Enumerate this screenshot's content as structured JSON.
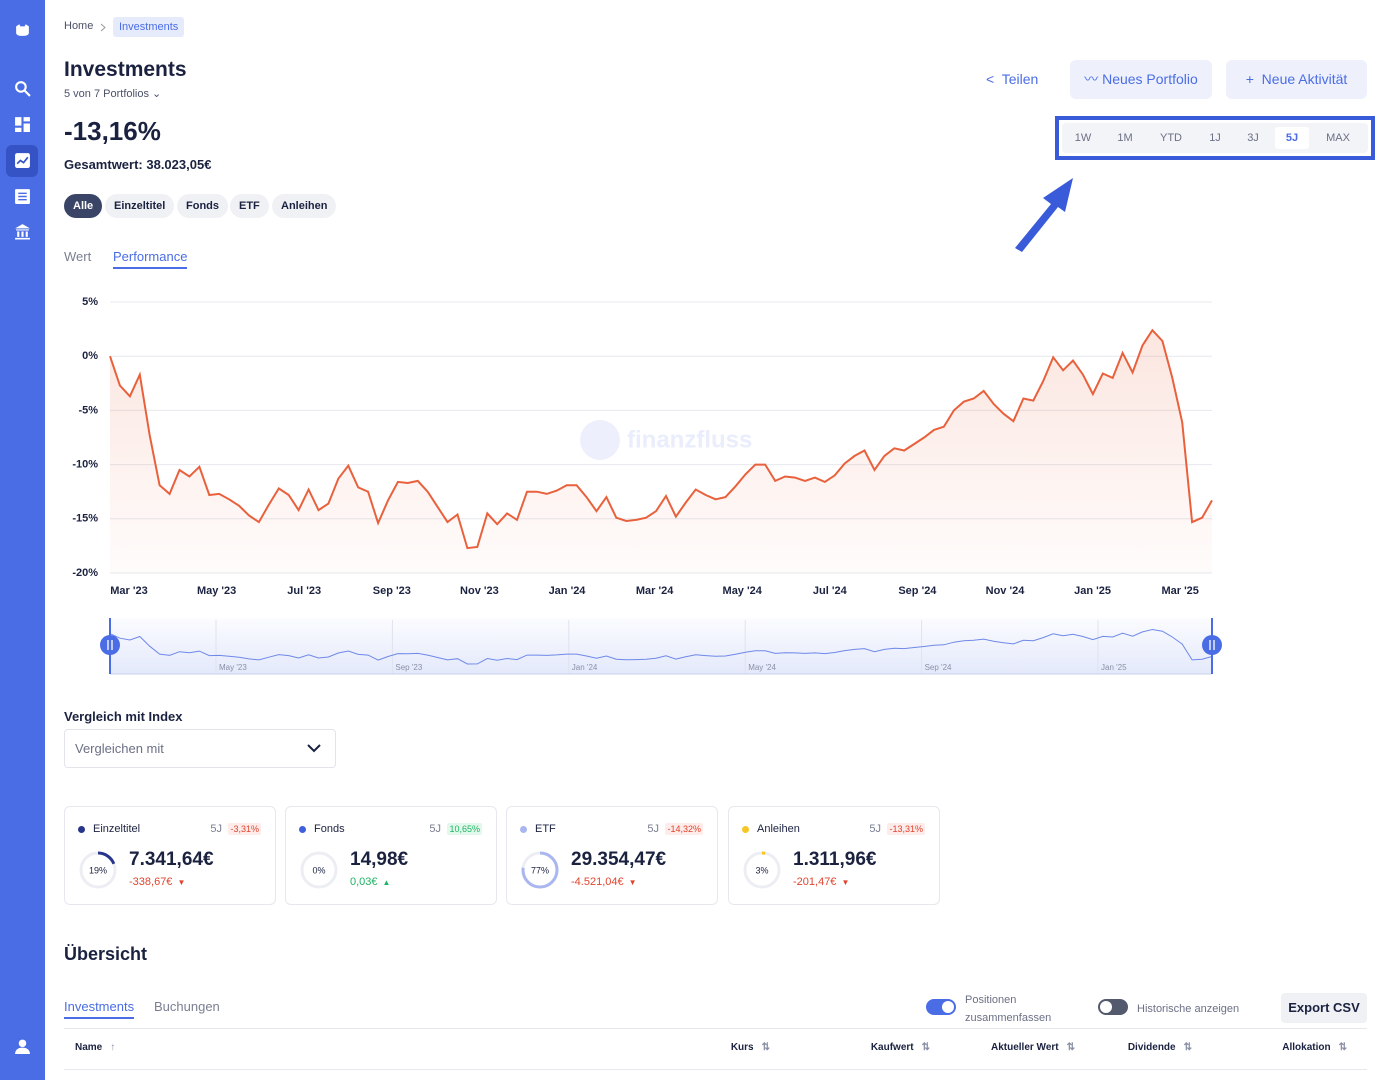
{
  "breadcrumb": [
    "Home",
    "Investments"
  ],
  "header": {
    "title": "Investments",
    "subtitle": "5 von 7 Portfolios",
    "actions": [
      "Teilen",
      "Neues Portfolio",
      "Neue Aktivität"
    ]
  },
  "summary": {
    "performance": "-13,16%",
    "total": "Gesamtwert: 38.023,05€"
  },
  "ranges": {
    "options": [
      "1W",
      "1M",
      "YTD",
      "1J",
      "3J",
      "5J",
      "MAX"
    ],
    "selected": 5
  },
  "filters": {
    "options": [
      "Alle",
      "Einzeltitel",
      "Fonds",
      "ETF",
      "Anleihen"
    ],
    "selected": 0
  },
  "view_tabs": {
    "options": [
      "Wert",
      "Performance"
    ],
    "selected": 1
  },
  "chart_data": {
    "type": "line",
    "watermark": "finanzfluss",
    "color": "#e8613c",
    "x_labels": [
      "Mar '23",
      "May '23",
      "Jul '23",
      "Sep '23",
      "Nov '23",
      "Jan '24",
      "Mar '24",
      "May '24",
      "Jul '24",
      "Sep '24",
      "Nov '24",
      "Jan '25",
      "Mar '25"
    ],
    "navigator_labels": [
      "May '23",
      "Sep '23",
      "Jan '24",
      "May '24",
      "Sep '24",
      "Jan '25"
    ],
    "values": [
      0,
      -2.7,
      -3.7,
      -1.7,
      -7.3,
      -11.9,
      -12.7,
      -10.5,
      -11.1,
      -10.2,
      -12.8,
      -12.7,
      -13.2,
      -13.8,
      -14.7,
      -15.3,
      -13.7,
      -12.2,
      -12.8,
      -14.2,
      -12.3,
      -14.2,
      -13.6,
      -11.3,
      -10.1,
      -12.1,
      -12.5,
      -15.4,
      -13.3,
      -11.6,
      -11.7,
      -11.5,
      -12.5,
      -13.9,
      -15.3,
      -14.6,
      -17.7,
      -17.6,
      -14.5,
      -15.5,
      -14.5,
      -15.1,
      -12.5,
      -12.5,
      -12.7,
      -12.4,
      -11.9,
      -11.9,
      -13.0,
      -14.3,
      -13.0,
      -14.9,
      -15.2,
      -15.1,
      -14.9,
      -14.3,
      -12.9,
      -14.8,
      -13.5,
      -12.3,
      -12.8,
      -13.2,
      -13.0,
      -12.0,
      -10.9,
      -10.0,
      -10.0,
      -11.5,
      -11.1,
      -11.2,
      -11.5,
      -11.2,
      -11.6,
      -11.0,
      -9.9,
      -9.2,
      -8.7,
      -10.5,
      -9.2,
      -8.5,
      -8.7,
      -8.1,
      -7.5,
      -6.8,
      -6.5,
      -5.0,
      -4.2,
      -3.9,
      -3.2,
      -4.4,
      -5.3,
      -6.0,
      -3.9,
      -4.1,
      -2.3,
      -0.1,
      -1.3,
      -0.4,
      -1.7,
      -3.5,
      -1.6,
      -2.0,
      0.3,
      -1.5,
      1.0,
      2.4,
      1.4,
      -2.0,
      -6.1,
      -15.3,
      -14.9,
      -13.3
    ],
    "ylim": [
      -20,
      5
    ],
    "yticks": [
      {
        "value": 5,
        "label": "5%"
      },
      {
        "value": 0,
        "label": "0%"
      },
      {
        "value": -5,
        "label": "-5%"
      },
      {
        "value": -10,
        "label": "-10%"
      },
      {
        "value": -15,
        "label": "-15%"
      },
      {
        "value": -20,
        "label": "-20%"
      }
    ],
    "grid": true
  },
  "comparison": {
    "label": "Vergleich mit Index",
    "placeholder": "Vergleichen mit"
  },
  "cards": [
    {
      "name": "Einzeltitel",
      "color": "#27358a",
      "period": "5J",
      "change_pct": "-3,31%",
      "trend": "down",
      "allocation": 19,
      "allocation_label": "19%",
      "value": "7.341,64€",
      "change": "-338,67€"
    },
    {
      "name": "Fonds",
      "color": "#3f5fdc",
      "period": "5J",
      "change_pct": "10,65%",
      "trend": "up",
      "allocation": 0,
      "allocation_label": "0%",
      "value": "14,98€",
      "change": "0,03€"
    },
    {
      "name": "ETF",
      "color": "#a9b6ef",
      "period": "5J",
      "change_pct": "-14,32%",
      "trend": "down",
      "allocation": 77,
      "allocation_label": "77%",
      "value": "29.354,47€",
      "change": "-4.521,04€"
    },
    {
      "name": "Anleihen",
      "color": "#f6c624",
      "period": "5J",
      "change_pct": "-13,31%",
      "trend": "down",
      "allocation": 3,
      "allocation_label": "3%",
      "value": "1.311,96€",
      "change": "-201,47€"
    }
  ],
  "overview": {
    "title": "Übersicht",
    "tabs": [
      "Investments",
      "Buchungen"
    ],
    "selected": 0,
    "toggles": [
      {
        "label": "Positionen zusammenfassen",
        "on": true
      },
      {
        "label": "Historische anzeigen",
        "on": false
      }
    ],
    "export": "Export CSV",
    "columns": [
      "Name",
      "Kurs",
      "Kaufwert",
      "Aktueller Wert",
      "Dividende",
      "Allokation"
    ]
  }
}
